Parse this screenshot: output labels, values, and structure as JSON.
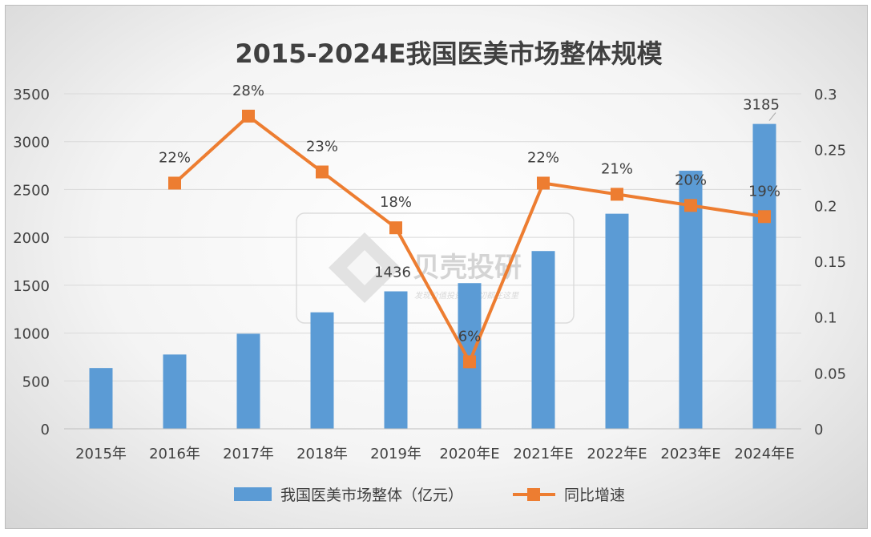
{
  "chart_data": {
    "type": "bar",
    "title": "2015-2024E我国医美市场整体规模",
    "categories": [
      "2015年",
      "2016年",
      "2017年",
      "2018年",
      "2019年",
      "2020年E",
      "2021年E",
      "2022年E",
      "2023年E",
      "2024年E"
    ],
    "series": [
      {
        "name": "我国医美市场整体（亿元）",
        "type": "bar",
        "axis": "left",
        "color": "#5B9BD5",
        "values": [
          635,
          776,
          993,
          1217,
          1436,
          1522,
          1857,
          2247,
          2696,
          3185
        ],
        "data_labels": [
          null,
          null,
          null,
          null,
          "1436",
          null,
          null,
          null,
          null,
          "3185"
        ]
      },
      {
        "name": "同比增速",
        "type": "line",
        "axis": "right",
        "color": "#ED7D31",
        "marker": "square",
        "values": [
          null,
          0.22,
          0.28,
          0.23,
          0.18,
          0.06,
          0.22,
          0.21,
          0.2,
          0.19
        ],
        "data_labels": [
          null,
          "22%",
          "28%",
          "23%",
          "18%",
          "6%",
          "22%",
          "21%",
          "20%",
          "19%"
        ]
      }
    ],
    "y_left": {
      "min": 0,
      "max": 3500,
      "ticks": [
        "0",
        "500",
        "1000",
        "1500",
        "2000",
        "2500",
        "3000",
        "3500"
      ]
    },
    "y_right": {
      "min": 0,
      "max": 0.3,
      "ticks": [
        "0",
        "0.05",
        "0.1",
        "0.15",
        "0.2",
        "0.25",
        "0.3"
      ]
    },
    "grid": true,
    "legend_position": "bottom"
  },
  "watermark": {
    "text": "贝壳投研",
    "subtext": "发现价值投资的一切都在这里"
  }
}
